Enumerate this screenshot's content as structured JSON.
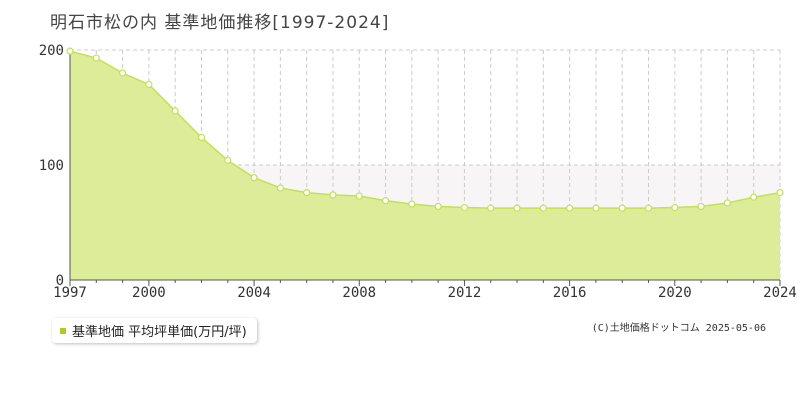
{
  "title": "明石市松の内 基準地価推移[1997-2024]",
  "legend": {
    "label": "基準地価 平均坪単価(万円/坪)"
  },
  "copyright": "(C)土地価格ドットコム 2025-05-06",
  "colors": {
    "fill": "#dcec98",
    "line": "#c4e055",
    "marker_fill": "#ffffff",
    "grid": "#cccccc",
    "band": "#f7f5f5",
    "axis": "#555555",
    "legend_swatch": "#a6cf2a"
  },
  "chart_data": {
    "type": "area",
    "title": "明石市松の内 基準地価推移[1997-2024]",
    "xlabel": "",
    "ylabel": "",
    "x": [
      1997,
      1998,
      1999,
      2000,
      2001,
      2002,
      2003,
      2004,
      2005,
      2006,
      2007,
      2008,
      2009,
      2010,
      2011,
      2012,
      2013,
      2014,
      2015,
      2016,
      2017,
      2018,
      2019,
      2020,
      2021,
      2022,
      2023,
      2024
    ],
    "series": [
      {
        "name": "基準地価 平均坪単価(万円/坪)",
        "values": [
          199,
          193,
          180,
          170,
          147,
          124,
          104,
          89,
          80,
          76,
          74,
          73,
          69,
          66,
          64,
          63,
          62.5,
          62.5,
          62.5,
          62.5,
          62.5,
          62.5,
          62.5,
          63,
          64,
          67,
          72,
          76
        ]
      }
    ],
    "xlim": [
      1997,
      2024
    ],
    "ylim": [
      0,
      200
    ],
    "xticks": [
      "1997",
      "2000",
      "2004",
      "2008",
      "2012",
      "2016",
      "2020",
      "2024"
    ],
    "yticks": [
      "0",
      "100",
      "200"
    ],
    "grid": true,
    "legend_position": "bottom-left"
  }
}
